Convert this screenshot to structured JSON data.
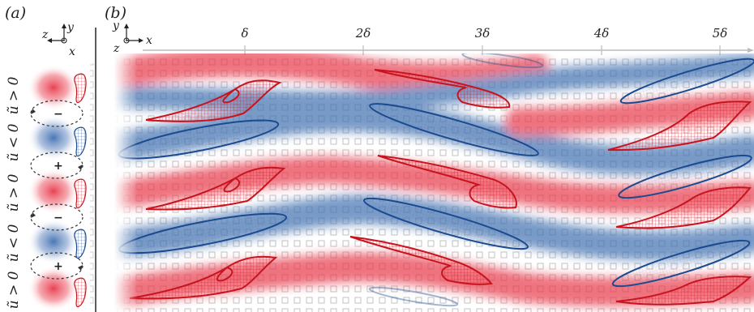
{
  "panel_a": {
    "label": "(a)",
    "axes": {
      "z": "z",
      "y": "y",
      "x": "x"
    },
    "regions": [
      "ũ > 0",
      "ũ < 0",
      "ũ > 0",
      "ũ < 0",
      "ũ > 0"
    ],
    "signs": [
      "−",
      "+",
      "−",
      "+"
    ]
  },
  "panel_b": {
    "label": "(b)",
    "axes": {
      "y": "y",
      "z": "z",
      "x": "x"
    },
    "ticks": [
      "δ",
      "2δ",
      "3δ",
      "4δ",
      "5δ"
    ]
  },
  "colors": {
    "positive": "#e8394a",
    "negative": "#3f6fb0",
    "positive_outline": "#c8141e",
    "negative_outline": "#1a4a90",
    "surface_square": "#c8c8c8"
  }
}
